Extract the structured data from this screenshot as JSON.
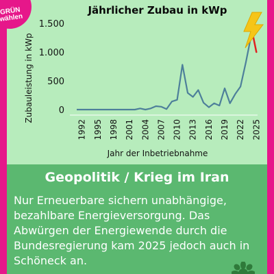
{
  "badge": {
    "line1": "GRÜN",
    "line2": "wählen"
  },
  "colors": {
    "magenta": "#e6178a",
    "card_bg": "#b7ecbc",
    "panel_bg": "#5bb870",
    "line": "#4d7f9a",
    "lightning": "#f5c518",
    "cut_mark": "#e02020"
  },
  "icons": [
    "lightning-icon",
    "sunflower-icon"
  ],
  "panel": {
    "title": "Geopolitik / Krieg im Iran",
    "body": "Nur Erneuerbare sichern unabhängige, bezahlbare Energieversorgung. Das Abwürgen der Energiewende durch die Bundesregierung kam 2025 jedoch auch in Schöneck an."
  },
  "chart_data": {
    "type": "line",
    "title": "Jährlicher Zubau in kWp",
    "xlabel": "Jahr der Inbetriebnahme",
    "ylabel": "Zubauleistung in kWp",
    "ylim": [
      0,
      1500
    ],
    "xlim": [
      1991,
      2026
    ],
    "yticks": [
      0,
      500,
      1000,
      1500
    ],
    "ytick_labels": [
      "0",
      "500",
      "1.000",
      "1.500"
    ],
    "xticks": [
      1992,
      1995,
      1998,
      2001,
      2004,
      2007,
      2010,
      2013,
      2016,
      2019,
      2022,
      2025
    ],
    "xtick_labels": [
      "1992",
      "1995",
      "1998",
      "2001",
      "2004",
      "2007",
      "2010",
      "2013",
      "2016",
      "2019",
      "2022",
      "2025"
    ],
    "grid": false,
    "series": [
      {
        "x": [
          1991,
          1992,
          1993,
          1994,
          1995,
          1996,
          1997,
          1998,
          1999,
          2000,
          2001,
          2002,
          2003,
          2004,
          2005,
          2006,
          2007,
          2008,
          2009,
          2010,
          2011,
          2012,
          2013,
          2014,
          2015,
          2016,
          2017,
          2018,
          2019,
          2020,
          2021,
          2022,
          2023,
          2024
        ],
        "y": [
          0,
          0,
          0,
          0,
          0,
          0,
          0,
          0,
          0,
          0,
          0,
          0,
          20,
          0,
          20,
          60,
          50,
          10,
          140,
          170,
          780,
          290,
          220,
          340,
          120,
          40,
          110,
          70,
          370,
          110,
          270,
          400,
          820,
          1280
        ]
      }
    ],
    "annotations": [
      {
        "kind": "decline-stroke",
        "x": [
          2024,
          2025
        ],
        "y": [
          1450,
          1000
        ]
      }
    ]
  }
}
